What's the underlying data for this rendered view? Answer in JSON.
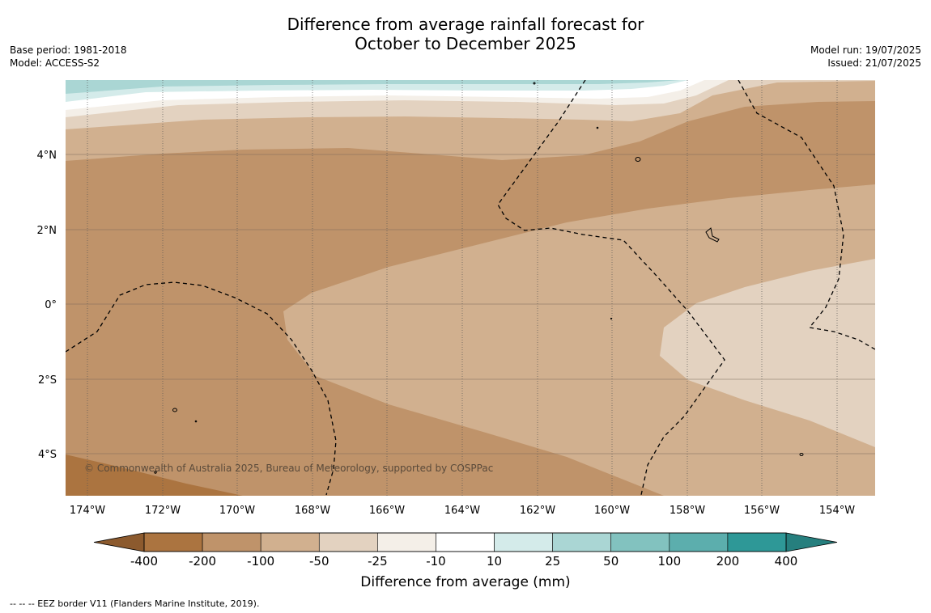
{
  "title_line1": "Difference from average rainfall forecast for",
  "title_line2": "October to December 2025",
  "base_period": "Base period: 1981-2018",
  "model": "Model: ACCESS-S2",
  "model_run": "Model run: 19/07/2025",
  "issued": "Issued: 21/07/2025",
  "copyright": "© Commonwealth of Australia 2025, Bureau of Meteorology, supported by COSPPac",
  "colorbar": {
    "label": "Difference from average (mm)",
    "ticks": [
      "-400",
      "-200",
      "-100",
      "-50",
      "-25",
      "-10",
      "10",
      "25",
      "50",
      "100",
      "200",
      "400"
    ],
    "colors": [
      "#ab7440",
      "#bf936a",
      "#d1b08f",
      "#e3d2c0",
      "#f4efe8",
      "#ffffff",
      "#d4ebea",
      "#aad6d4",
      "#82c2bf",
      "#5caead",
      "#2e9897"
    ],
    "low_color": "#8c5a2e",
    "high_color": "#267f7e"
  },
  "axes": {
    "lon_labels": [
      "174°W",
      "172°W",
      "170°W",
      "168°W",
      "166°W",
      "164°W",
      "162°W",
      "160°W",
      "158°W",
      "156°W",
      "154°W"
    ],
    "lat_labels": [
      "4°N",
      "2°N",
      "0°",
      "2°S",
      "4°S"
    ]
  },
  "footnote": "--  --  -- EEZ border V11 (Flanders Marine Institute, 2019)."
}
